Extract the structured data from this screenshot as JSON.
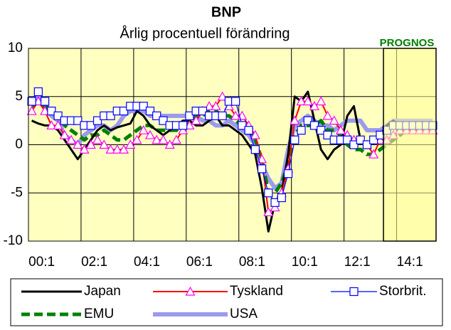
{
  "chart_data": {
    "type": "line",
    "title": "BNP",
    "subtitle": "Årlig procentuell förändring",
    "annotation": "PROGNOS",
    "annotation_color": "#008000",
    "forecast_start_index": 54,
    "categories": [
      "00:1",
      null,
      null,
      null,
      null,
      null,
      null,
      null,
      "02:1",
      null,
      null,
      null,
      null,
      null,
      null,
      null,
      "04:1",
      null,
      null,
      null,
      null,
      null,
      null,
      null,
      "06:1",
      null,
      null,
      null,
      null,
      null,
      null,
      null,
      "08:1",
      null,
      null,
      null,
      null,
      null,
      null,
      null,
      "10:1",
      null,
      null,
      null,
      null,
      null,
      null,
      null,
      "12:1",
      null,
      null,
      null,
      null,
      null,
      null,
      null,
      "14:1",
      null,
      null,
      null,
      null,
      null
    ],
    "ylim": [
      -10,
      10
    ],
    "yticks": [
      -10,
      -5,
      0,
      5,
      10
    ],
    "grid": true,
    "legend": "bottom",
    "series": [
      {
        "name": "Japan",
        "color": "#000000",
        "width": 3,
        "values": [
          2.5,
          2.2,
          2.0,
          2.0,
          1.5,
          0.5,
          -0.5,
          -1.5,
          -0.5,
          0.5,
          1.5,
          2.0,
          1.5,
          1.8,
          2.0,
          2.2,
          3.5,
          3.0,
          2.0,
          1.5,
          1.0,
          1.5,
          2.0,
          2.5,
          2.5,
          2.0,
          2.0,
          2.5,
          3.0,
          2.0,
          2.0,
          1.5,
          1.0,
          0.0,
          -1.0,
          -4.5,
          -9.0,
          -6.0,
          -5.0,
          -1.0,
          5.0,
          4.5,
          5.5,
          2.5,
          -0.5,
          -1.5,
          -0.5,
          0.0,
          3.0,
          4.0,
          0.5,
          0.0,
          0.5,
          1.0,
          2.0,
          2.5,
          2.0,
          1.5,
          1.5,
          1.5,
          1.5,
          1.5
        ]
      },
      {
        "name": "Tyskland",
        "color": "#ff0000",
        "width": 2,
        "marker": "triangle",
        "marker_color": "#ff00ff",
        "values": [
          3.5,
          4.5,
          3.5,
          2.0,
          2.0,
          1.0,
          0.5,
          0.0,
          -0.5,
          0.0,
          0.5,
          0.0,
          -0.5,
          -0.5,
          -0.5,
          0.0,
          0.5,
          1.5,
          1.0,
          0.5,
          0.5,
          0.0,
          0.5,
          1.5,
          2.0,
          2.5,
          3.5,
          4.0,
          4.0,
          5.0,
          4.0,
          3.0,
          3.0,
          2.0,
          1.0,
          -1.5,
          -7.0,
          -6.5,
          -5.0,
          -2.5,
          2.5,
          4.5,
          4.5,
          4.0,
          4.5,
          3.0,
          2.5,
          1.5,
          1.0,
          0.5,
          0.5,
          0.0,
          -1.0,
          0.5,
          0.5,
          1.0,
          1.5,
          1.5,
          1.5,
          1.5,
          1.5,
          1.5
        ]
      },
      {
        "name": "Storbrit.",
        "color": "#0000ff",
        "width": 1.2,
        "marker": "square",
        "marker_color": "#0000ff",
        "values": [
          4.5,
          5.5,
          4.5,
          3.5,
          3.0,
          2.5,
          2.5,
          2.5,
          2.0,
          2.0,
          2.5,
          3.0,
          3.0,
          3.5,
          3.5,
          4.0,
          4.0,
          4.0,
          3.5,
          3.0,
          2.5,
          2.0,
          2.0,
          2.0,
          3.0,
          3.5,
          3.5,
          3.0,
          3.0,
          3.0,
          4.5,
          4.5,
          2.0,
          1.5,
          -0.5,
          -2.5,
          -5.0,
          -6.0,
          -5.5,
          -3.0,
          0.5,
          1.5,
          2.5,
          2.0,
          1.5,
          1.0,
          0.5,
          0.5,
          0.5,
          0.0,
          0.5,
          0.0,
          0.5,
          1.0,
          1.5,
          2.0,
          2.0,
          2.0,
          2.0,
          2.0,
          2.0,
          2.0
        ]
      },
      {
        "name": "EMU",
        "color": "#008000",
        "width": 5,
        "dash": "12 6",
        "values": [
          4.0,
          4.5,
          4.0,
          3.5,
          3.0,
          2.0,
          1.5,
          1.0,
          0.5,
          1.0,
          1.0,
          1.5,
          1.0,
          0.5,
          0.5,
          1.0,
          1.5,
          2.0,
          2.0,
          1.5,
          1.5,
          1.5,
          1.5,
          2.0,
          2.5,
          3.0,
          3.0,
          3.5,
          3.5,
          3.0,
          3.0,
          2.5,
          2.0,
          1.5,
          0.5,
          -1.5,
          -5.0,
          -5.0,
          -4.0,
          -2.0,
          1.0,
          2.0,
          2.0,
          2.0,
          2.5,
          1.5,
          1.5,
          1.0,
          0.0,
          -0.5,
          -0.5,
          -1.0,
          -1.0,
          -0.5,
          0.0,
          0.5,
          1.0,
          1.5,
          1.5,
          1.5,
          1.5,
          1.5
        ]
      },
      {
        "name": "USA",
        "color": "#9a9aef",
        "width": 6,
        "values": [
          4.0,
          5.0,
          4.0,
          3.0,
          2.5,
          1.0,
          0.5,
          0.0,
          1.0,
          1.5,
          2.0,
          2.0,
          1.5,
          2.0,
          3.0,
          3.5,
          3.5,
          3.5,
          3.0,
          3.0,
          3.0,
          3.0,
          3.0,
          3.0,
          3.0,
          3.0,
          2.5,
          2.5,
          2.0,
          2.0,
          2.5,
          2.0,
          1.5,
          1.0,
          0.0,
          -2.0,
          -3.5,
          -4.5,
          -4.0,
          -0.5,
          2.0,
          2.5,
          3.0,
          2.5,
          2.0,
          2.0,
          1.5,
          2.0,
          2.5,
          2.5,
          2.5,
          1.5,
          1.5,
          1.5,
          2.0,
          2.5,
          2.5,
          2.5,
          2.5,
          2.5,
          2.5,
          2.5
        ]
      }
    ]
  }
}
